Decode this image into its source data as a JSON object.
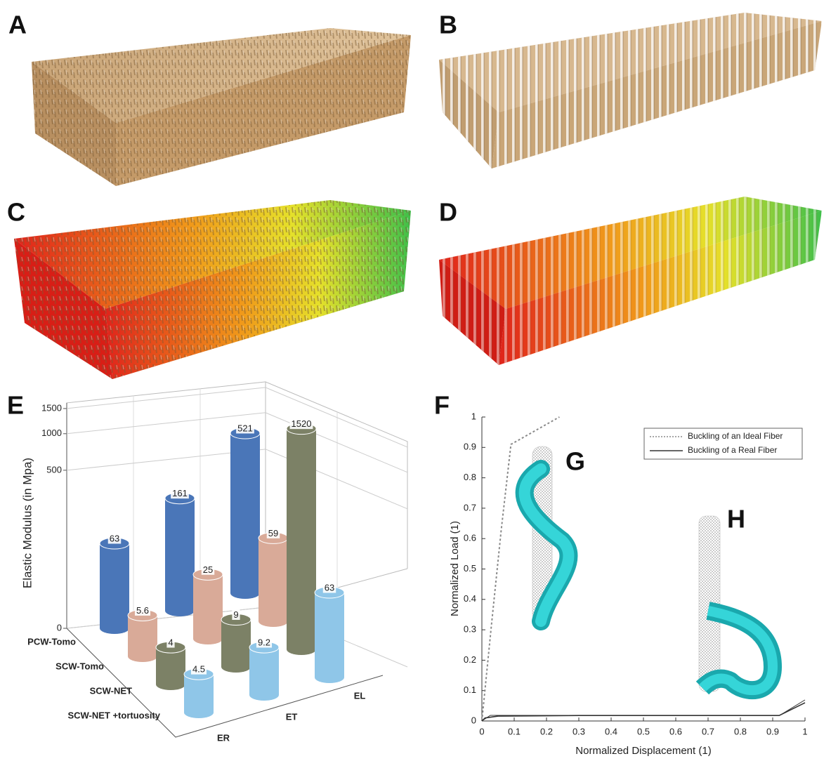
{
  "panel_labels": [
    "A",
    "B",
    "C",
    "D",
    "E",
    "F"
  ],
  "inset_labels": [
    "G",
    "H"
  ],
  "chart_data": [
    {
      "type": "bar3d",
      "ylabel": "Elastic Modulus (in Mpa)",
      "categories": [
        "ER",
        "ET",
        "EL"
      ],
      "series": [
        {
          "name": "PCW-Tomo",
          "color": "#4a76b8",
          "values": [
            63,
            161,
            521
          ]
        },
        {
          "name": "SCW-Tomo",
          "color": "#d9aa98",
          "values": [
            5.6,
            25,
            59
          ]
        },
        {
          "name": "SCW-NET",
          "color": "#7c8166",
          "values": [
            4,
            9,
            1520
          ]
        },
        {
          "name": "SCW-NET +tortuosity",
          "color": "#8fc6e8",
          "values": [
            4.5,
            9.2,
            63
          ]
        }
      ],
      "ylim": [
        0,
        1500
      ],
      "yticks": [
        0,
        500,
        1000,
        1500
      ],
      "yscale": "power",
      "yexponent": 0.3,
      "grid": true
    },
    {
      "type": "line",
      "xlabel": "Normalized Displacement (1)",
      "ylabel": "Normalized Load (1)",
      "xlim": [
        0,
        1
      ],
      "ylim": [
        0,
        1
      ],
      "xticks": [
        0,
        0.1,
        0.2,
        0.3,
        0.4,
        0.5,
        0.6,
        0.7,
        0.8,
        0.9,
        1
      ],
      "yticks": [
        0,
        0.1,
        0.2,
        0.3,
        0.4,
        0.5,
        0.6,
        0.7,
        0.8,
        0.9,
        1
      ],
      "legend": "upper right",
      "series": [
        {
          "name": "Buckling of an Ideal Fiber",
          "color": "#8a8a8a",
          "linestyle": "dotted",
          "x": [
            0,
            0.03,
            0.06,
            0.09,
            0.24
          ],
          "values": [
            0,
            0.32,
            0.63,
            0.91,
            1
          ]
        },
        {
          "name": "Buckling of a Real Fiber",
          "color": "#333333",
          "linestyle": "solid",
          "x": [
            0,
            0.01,
            0.05,
            0.3,
            0.6,
            0.92,
            1
          ],
          "values": [
            0,
            0.01,
            0.016,
            0.018,
            0.018,
            0.018,
            0.06
          ]
        }
      ]
    }
  ]
}
